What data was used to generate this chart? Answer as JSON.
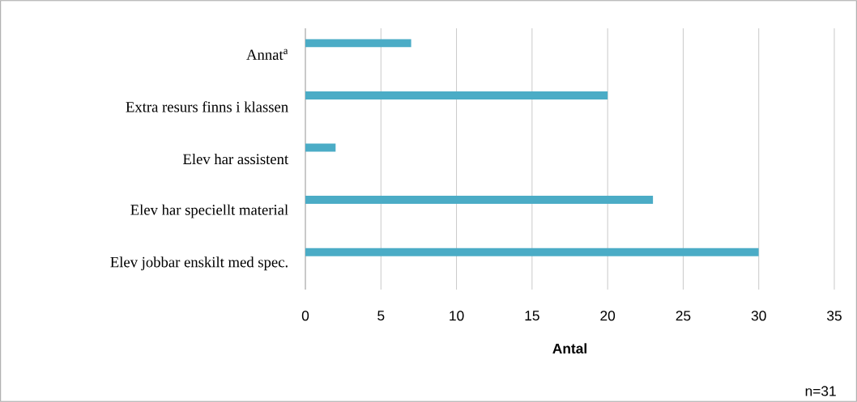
{
  "chart_data": {
    "type": "bar",
    "orientation": "horizontal",
    "categories": [
      "Annat$^{a}$",
      "Extra resurs finns i klassen",
      "Elev har assistent",
      "Elev har speciellt material",
      "Elev jobbar enskilt med spec."
    ],
    "values": [
      7,
      20,
      2,
      23,
      30
    ],
    "color": "#4bacc6",
    "xlim": [
      0,
      35
    ],
    "xticks": [
      0,
      5,
      10,
      15,
      20,
      25,
      30,
      35
    ],
    "xlabel": "Antal",
    "grid": "x",
    "annotations": [
      "n=31"
    ]
  }
}
